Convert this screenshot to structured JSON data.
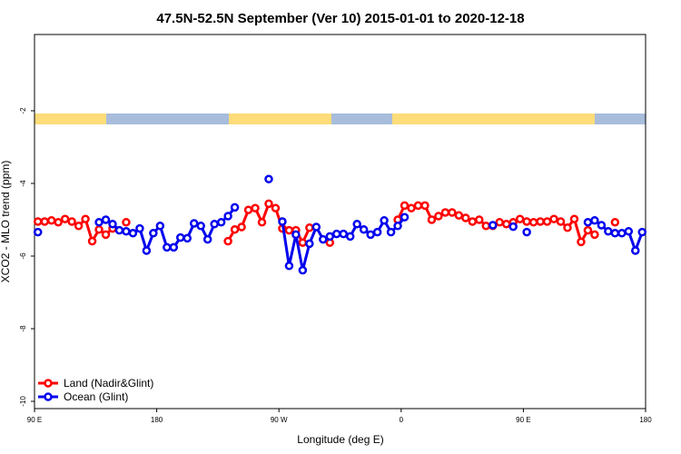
{
  "chart_data": {
    "type": "line",
    "title": "47.5N-52.5N September (Ver 10)   2015-01-01 to 2020-12-18",
    "xlabel": "Longitude (deg E)",
    "ylabel": "XCO2 - MLO trend (ppm)",
    "xlim": [
      90,
      540
    ],
    "xticks": [
      {
        "value": 90,
        "label": "90 E"
      },
      180,
      {
        "value": 270,
        "label": "90 W"
      },
      {
        "value": 360,
        "label": "0"
      },
      {
        "value": 450,
        "label": "90 E"
      },
      {
        "value": 540,
        "label": "180"
      }
    ],
    "ylim": [
      -10.2,
      0.1
    ],
    "yticks": [
      -2,
      -4,
      -6,
      -8,
      -10
    ],
    "legend": "bottom-left",
    "series": [
      {
        "name": "Land (Nadir&Glint)",
        "color": "#ff0000",
        "x": [
          92.5,
          97.5,
          102.5,
          107.5,
          112.5,
          117.5,
          122.5,
          127.5,
          132.5,
          137.5,
          142.5,
          147.5,
          152.5,
          157.5,
          162.5,
          232.5,
          237.5,
          242.5,
          247.5,
          252.5,
          257.5,
          262.5,
          267.5,
          272.5,
          277.5,
          282.5,
          287.5,
          292.5,
          297.5,
          307.5,
          312.5,
          357.5,
          362.5,
          367.5,
          372.5,
          377.5,
          382.5,
          387.5,
          392.5,
          397.5,
          402.5,
          407.5,
          412.5,
          417.5,
          422.5,
          427.5,
          432.5,
          437.5,
          442.5,
          447.5,
          452.5,
          457.5,
          462.5,
          467.5,
          472.5,
          477.5,
          482.5,
          487.5,
          492.5,
          497.5,
          502.5,
          507.5,
          517.5
        ],
        "values": [
          -5.05,
          -5.05,
          -5.02,
          -5.07,
          -4.98,
          -5.05,
          -5.17,
          -4.98,
          -5.59,
          -5.27,
          -5.41,
          -5.24,
          null,
          -5.07,
          null,
          -5.59,
          -5.27,
          -5.2,
          -4.73,
          -4.68,
          -5.07,
          -4.56,
          -4.68,
          -5.24,
          -5.29,
          -5.29,
          -5.63,
          -5.22,
          null,
          -5.63,
          null,
          -5.0,
          -4.61,
          -4.68,
          -4.61,
          -4.61,
          -5.0,
          -4.9,
          -4.8,
          -4.8,
          -4.88,
          -4.95,
          -5.05,
          -5.0,
          -5.17,
          -5.17,
          -5.07,
          -5.12,
          -5.07,
          -4.98,
          -5.05,
          -5.07,
          -5.05,
          -5.05,
          -4.98,
          -5.05,
          -5.22,
          -4.98,
          -5.61,
          -5.29,
          -5.41,
          null,
          -5.07
        ]
      },
      {
        "name": "Ocean (Glint)",
        "color": "#0000ee",
        "x": [
          92.5,
          97.5,
          137.5,
          142.5,
          147.5,
          152.5,
          157.5,
          162.5,
          167.5,
          172.5,
          177.5,
          182.5,
          187.5,
          192.5,
          197.5,
          202.5,
          207.5,
          212.5,
          217.5,
          222.5,
          227.5,
          232.5,
          237.5,
          242.5,
          262.5,
          267.5,
          272.5,
          277.5,
          282.5,
          287.5,
          292.5,
          297.5,
          302.5,
          307.5,
          312.5,
          317.5,
          322.5,
          327.5,
          332.5,
          337.5,
          342.5,
          347.5,
          352.5,
          357.5,
          362.5,
          367.5,
          427.5,
          432.5,
          442.5,
          447.5,
          452.5,
          457.5,
          497.5,
          502.5,
          507.5,
          512.5,
          517.5,
          522.5,
          527.5,
          532.5,
          537.5
        ],
        "values": [
          -5.34,
          null,
          -5.07,
          -5.0,
          -5.12,
          -5.29,
          -5.32,
          -5.37,
          -5.24,
          -5.85,
          -5.37,
          -5.17,
          -5.76,
          -5.76,
          -5.49,
          -5.51,
          -5.1,
          -5.17,
          -5.54,
          -5.12,
          -5.07,
          -4.9,
          -4.66,
          null,
          -3.88,
          null,
          -5.05,
          -6.27,
          -5.41,
          -6.39,
          -5.66,
          -5.2,
          -5.54,
          -5.46,
          -5.39,
          -5.39,
          -5.46,
          -5.12,
          -5.27,
          -5.41,
          -5.34,
          -5.02,
          -5.34,
          -5.17,
          -4.93,
          null,
          -5.15,
          null,
          -5.19,
          null,
          -5.34,
          null,
          -5.07,
          -5.02,
          -5.15,
          -5.32,
          -5.37,
          -5.37,
          -5.32,
          -5.85,
          -5.34
        ]
      }
    ]
  }
}
